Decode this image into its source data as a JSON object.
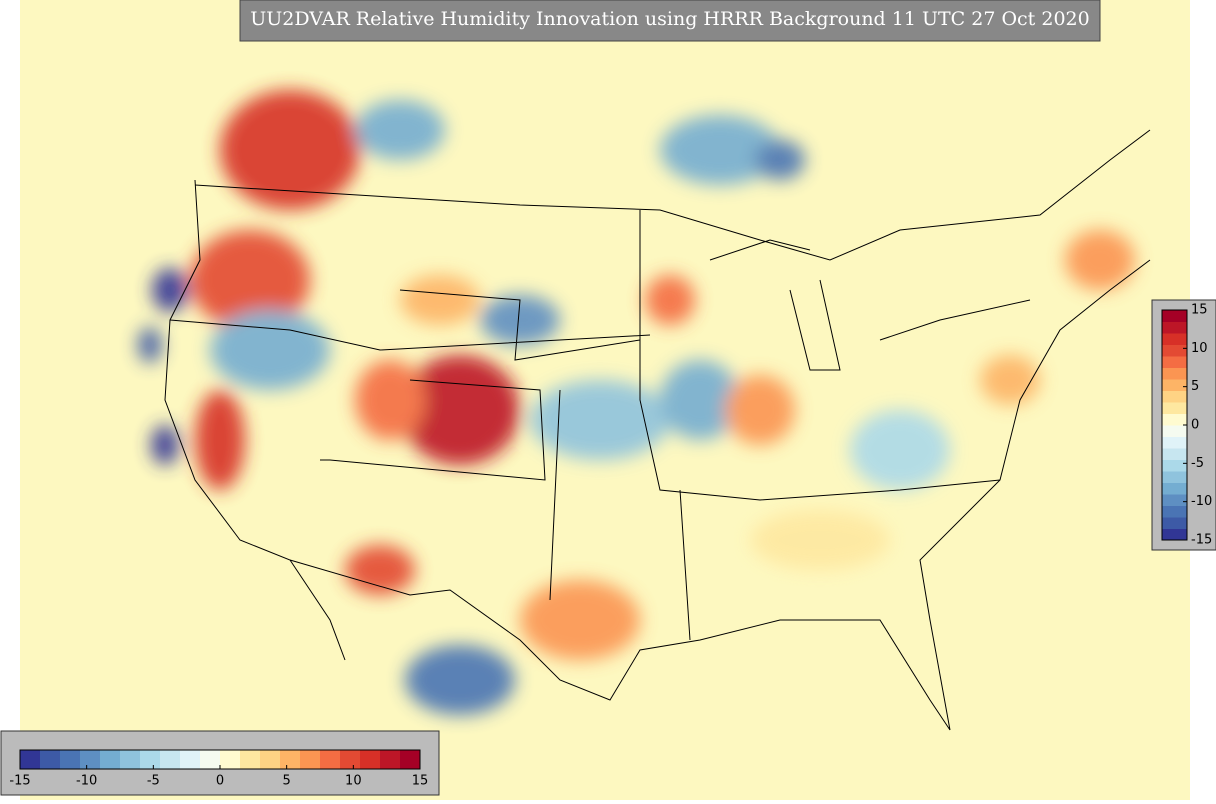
{
  "title": "UU2DVAR Relative Humidity Innovation using HRRR Background 11 UTC 27 Oct 2020",
  "colorbars": [
    {
      "orientation": "horizontal",
      "lim": [
        -15,
        15
      ],
      "ticks": [
        -15,
        -10,
        -5,
        0,
        5,
        10,
        15
      ],
      "colors": [
        "#313695",
        "#3d5aa6",
        "#4a74b4",
        "#5e8fc2",
        "#74add1",
        "#8fc3dd",
        "#abd9e9",
        "#c7e6f0",
        "#e0f3f8",
        "#f5fbf0",
        "#fffbd0",
        "#fee8a0",
        "#fed384",
        "#fdb466",
        "#fb9552",
        "#f46d43",
        "#e34a33",
        "#d73027",
        "#bd1627",
        "#a50026"
      ]
    },
    {
      "orientation": "vertical",
      "lim": [
        -15,
        15
      ],
      "ticks": [
        15,
        10,
        5,
        0,
        -5,
        -10,
        -15
      ],
      "colors": [
        "#313695",
        "#3d5aa6",
        "#4a74b4",
        "#5e8fc2",
        "#74add1",
        "#8fc3dd",
        "#abd9e9",
        "#c7e6f0",
        "#e0f3f8",
        "#f5fbf0",
        "#fffbd0",
        "#fee8a0",
        "#fed384",
        "#fdb466",
        "#fb9552",
        "#f46d43",
        "#e34a33",
        "#d73027",
        "#bd1627",
        "#a50026"
      ]
    }
  ]
}
